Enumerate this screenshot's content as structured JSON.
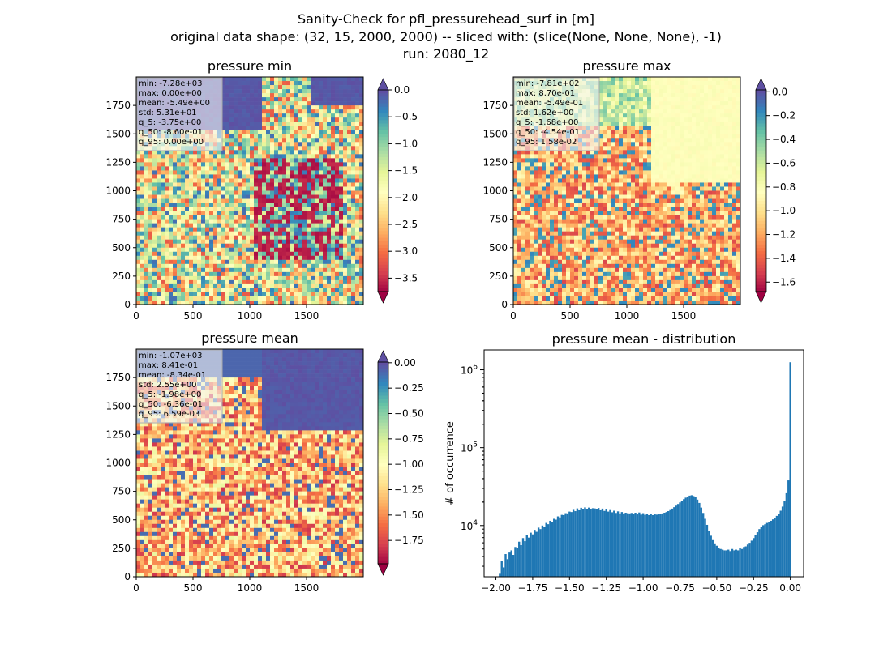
{
  "figure": {
    "suptitle": [
      "Sanity-Check for pfl_pressurehead_surf in [m]",
      "original data shape: (32, 15, 2000, 2000) -- sliced with: (slice(None, None, None), -1)",
      "run: 2080_12"
    ]
  },
  "chart_data": [
    {
      "type": "heatmap",
      "title": "pressure min",
      "xlim": [
        0,
        2000
      ],
      "ylim": [
        0,
        2000
      ],
      "xticks": [
        "0",
        "500",
        "1000",
        "1500"
      ],
      "yticks": [
        "0",
        "250",
        "500",
        "750",
        "1000",
        "1250",
        "1500",
        "1750"
      ],
      "colorbar": {
        "colormap": "Spectral",
        "vmin": -3.75,
        "vmax": 0.0,
        "extend": "both",
        "ticks": [
          "0.0",
          "−0.5",
          "−1.0",
          "−1.5",
          "−2.0",
          "−2.5",
          "−3.0",
          "−3.5"
        ],
        "tick_values": [
          0.0,
          -0.5,
          -1.0,
          -1.5,
          -2.0,
          -2.5,
          -3.0,
          -3.5
        ]
      },
      "stats": [
        "min: -7.28e+03",
        "max: 0.00e+00",
        "mean: -5.49e+00",
        "std: 5.31e+01",
        "q_5: -3.75e+00",
        "q_50: -8.60e-01",
        "q_95: 0.00e+00"
      ]
    },
    {
      "type": "heatmap",
      "title": "pressure max",
      "xlim": [
        0,
        2000
      ],
      "ylim": [
        0,
        2000
      ],
      "xticks": [
        "0",
        "500",
        "1000",
        "1500"
      ],
      "yticks": [
        "0",
        "250",
        "500",
        "750",
        "1000",
        "1250",
        "1500",
        "1750"
      ],
      "colorbar": {
        "colormap": "Spectral",
        "vmin": -1.68,
        "vmax": 0.0158,
        "extend": "both",
        "ticks": [
          "0.0",
          "−0.2",
          "−0.4",
          "−0.6",
          "−0.8",
          "−1.0",
          "−1.2",
          "−1.4",
          "−1.6"
        ],
        "tick_values": [
          0.0,
          -0.2,
          -0.4,
          -0.6,
          -0.8,
          -1.0,
          -1.2,
          -1.4,
          -1.6
        ]
      },
      "stats": [
        "min: -7.81e+02",
        "max: 8.70e-01",
        "mean: -5.49e-01",
        "std: 1.62e+00",
        "q_5: -1.68e+00",
        "q_50: -4.54e-01",
        "q_95: 1.58e-02"
      ]
    },
    {
      "type": "heatmap",
      "title": "pressure mean",
      "xlim": [
        0,
        2000
      ],
      "ylim": [
        0,
        2000
      ],
      "xticks": [
        "0",
        "500",
        "1000",
        "1500"
      ],
      "yticks": [
        "0",
        "250",
        "500",
        "750",
        "1000",
        "1250",
        "1500",
        "1750"
      ],
      "colorbar": {
        "colormap": "Spectral",
        "vmin": -1.98,
        "vmax": 0.00659,
        "extend": "both",
        "ticks": [
          "0.00",
          "−0.25",
          "−0.50",
          "−0.75",
          "−1.00",
          "−1.25",
          "−1.50",
          "−1.75"
        ],
        "tick_values": [
          0.0,
          -0.25,
          -0.5,
          -0.75,
          -1.0,
          -1.25,
          -1.5,
          -1.75
        ]
      },
      "stats": [
        "min: -1.07e+03",
        "max: 8.41e-01",
        "mean: -8.34e-01",
        "std: 2.55e+00",
        "q_5: -1.98e+00",
        "q_50: -6.36e-01",
        "q_95: 6.59e-03"
      ]
    },
    {
      "type": "bar",
      "title": "pressure mean - distribution",
      "xlabel": "",
      "ylabel": "# of occurrence",
      "yscale": "log",
      "xlim": [
        -2.08,
        0.09
      ],
      "ylim": [
        2200,
        1800000
      ],
      "xticks": [
        "−2.00",
        "−1.75",
        "−1.50",
        "−1.25",
        "−1.00",
        "−0.75",
        "−0.50",
        "−0.25",
        "0.00"
      ],
      "xtick_values": [
        -2.0,
        -1.75,
        -1.5,
        -1.25,
        -1.0,
        -0.75,
        -0.5,
        -0.25,
        0.0
      ],
      "yticks": [
        "10^4",
        "10^5",
        "10^6"
      ],
      "ytick_values": [
        10000,
        100000,
        1000000
      ],
      "bar_color": "#1f77b4",
      "bins": {
        "start": -1.98,
        "end": 0.00659,
        "values": [
          2400,
          3500,
          2900,
          4300,
          3700,
          4500,
          4800,
          4200,
          5300,
          5100,
          6200,
          5600,
          6900,
          6300,
          7500,
          7000,
          8100,
          7700,
          8800,
          8300,
          9400,
          9000,
          10000,
          9700,
          10800,
          10400,
          11500,
          11100,
          12200,
          11900,
          13100,
          12700,
          13700,
          13600,
          14400,
          14300,
          15100,
          14900,
          15900,
          15300,
          16600,
          15700,
          16900,
          16100,
          17100,
          16400,
          17000,
          16300,
          16700,
          16600,
          16200,
          16800,
          15700,
          16500,
          15400,
          16100,
          15100,
          15800,
          14800,
          15500,
          14500,
          15200,
          14300,
          14900,
          14300,
          14600,
          14400,
          14300,
          14500,
          14100,
          14600,
          13900,
          14700,
          13800,
          14400,
          13700,
          14200,
          13600,
          14100,
          13600,
          13900,
          13800,
          13900,
          14100,
          14300,
          14600,
          14900,
          15300,
          15800,
          16500,
          17200,
          18000,
          18900,
          19800,
          20800,
          21800,
          22800,
          23500,
          24200,
          24500,
          23900,
          23000,
          21500,
          19500,
          17000,
          14500,
          12200,
          10200,
          8600,
          7400,
          6500,
          5900,
          5500,
          5200,
          5000,
          4900,
          4800,
          4800,
          4900,
          4700,
          5000,
          4800,
          4900,
          4800,
          5100,
          5000,
          5300,
          5400,
          5700,
          6000,
          6400,
          6900,
          7500,
          8200,
          9000,
          9600,
          10100,
          10400,
          10800,
          11100,
          11500,
          12000,
          12600,
          13300,
          14200,
          15500,
          17500,
          20500,
          26000,
          38000,
          1250000
        ]
      }
    }
  ]
}
